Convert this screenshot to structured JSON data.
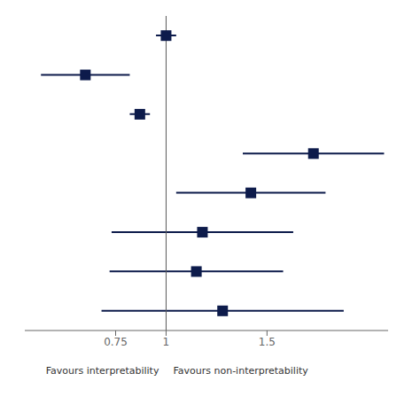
{
  "chart_data": {
    "type": "forest",
    "categories": [
      null,
      null,
      null,
      null,
      null,
      null,
      null,
      null
    ],
    "values": [
      1.0,
      0.6,
      0.87,
      1.73,
      1.42,
      1.18,
      1.15,
      1.28
    ],
    "lower": [
      0.95,
      0.38,
      0.82,
      1.38,
      1.05,
      0.73,
      0.72,
      0.68
    ],
    "upper": [
      1.05,
      0.82,
      0.92,
      2.08,
      1.79,
      1.63,
      1.58,
      1.88
    ],
    "color": "#0d1b4b",
    "marker": "square",
    "xlim": [
      0.3,
      2.1
    ],
    "xticks": [
      0.75,
      1,
      1.5
    ],
    "reference_lines": [
      {
        "x": 1.0,
        "color": "#5a5a5a"
      }
    ],
    "annotations": [
      {
        "text": "Favours interpretability"
      },
      {
        "text": "Favours non-interpretability"
      }
    ],
    "grid": false,
    "tick_labels": "x"
  }
}
